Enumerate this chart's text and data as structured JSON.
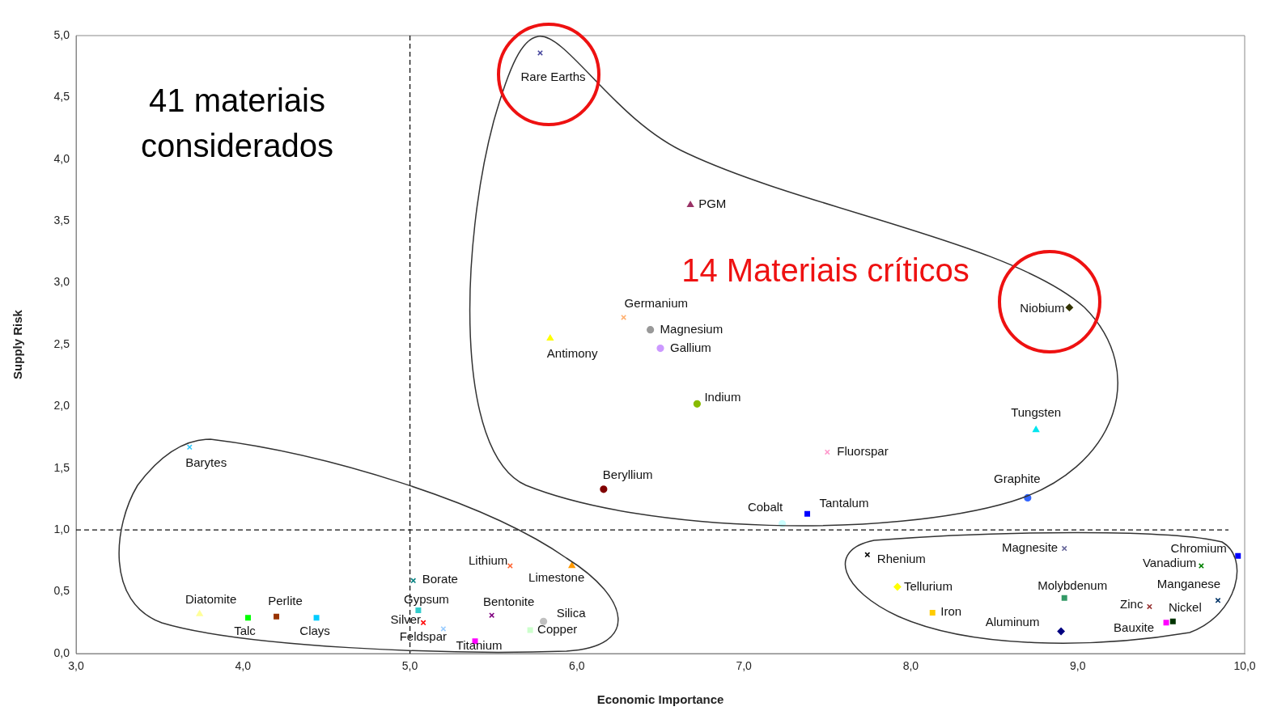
{
  "chart_data": {
    "type": "scatter",
    "xlabel": "Economic Importance",
    "ylabel": "Supply Risk",
    "xlim": [
      3,
      10
    ],
    "ylim": [
      0,
      5
    ],
    "xticks": [
      {
        "value": 3,
        "label": "3,0"
      },
      {
        "value": 4,
        "label": "4,0"
      },
      {
        "value": 5,
        "label": "5,0"
      },
      {
        "value": 6,
        "label": "6,0"
      },
      {
        "value": 7,
        "label": "7,0"
      },
      {
        "value": 8,
        "label": "8,0"
      },
      {
        "value": 9,
        "label": "9,0"
      },
      {
        "value": 10,
        "label": "10,0"
      }
    ],
    "yticks": [
      {
        "value": 0,
        "label": "0,0"
      },
      {
        "value": 0.5,
        "label": "0,5"
      },
      {
        "value": 1,
        "label": "1,0"
      },
      {
        "value": 1.5,
        "label": "1,5"
      },
      {
        "value": 2,
        "label": "2,0"
      },
      {
        "value": 2.5,
        "label": "2,5"
      },
      {
        "value": 3,
        "label": "3,0"
      },
      {
        "value": 3.5,
        "label": "3,5"
      },
      {
        "value": 4,
        "label": "4,0"
      },
      {
        "value": 4.5,
        "label": "4,5"
      },
      {
        "value": 5,
        "label": "5,0"
      }
    ],
    "grid": false,
    "legend": false,
    "annotations": [
      "41 materiais considerados",
      "14 Materiais críticos"
    ],
    "ref_lines": [
      {
        "axis": "x",
        "value": 5,
        "line_style": "dashed"
      },
      {
        "axis": "y",
        "value": 1,
        "line_style": "dashed"
      }
    ],
    "series": [
      {
        "name": "Rare Earths",
        "color": "#4b4ba0",
        "marker": "cross",
        "x": [
          5.78
        ],
        "values": [
          4.86
        ]
      },
      {
        "name": "PGM",
        "color": "#993366",
        "marker": "triangle",
        "x": [
          6.68
        ],
        "values": [
          3.63
        ]
      },
      {
        "name": "Germanium",
        "color": "#ffb070",
        "marker": "cross",
        "x": [
          6.28
        ],
        "values": [
          2.72
        ]
      },
      {
        "name": "Magnesium",
        "color": "#999999",
        "marker": "circle",
        "x": [
          6.44
        ],
        "values": [
          2.62
        ]
      },
      {
        "name": "Gallium",
        "color": "#cc99ff",
        "marker": "circle",
        "x": [
          6.5
        ],
        "values": [
          2.47
        ]
      },
      {
        "name": "Antimony",
        "color": "#ffff00",
        "marker": "triangle",
        "x": [
          5.84
        ],
        "values": [
          2.55
        ]
      },
      {
        "name": "Indium",
        "color": "#88bb00",
        "marker": "circle",
        "x": [
          6.72
        ],
        "values": [
          2.02
        ]
      },
      {
        "name": "Niobium",
        "color": "#333300",
        "marker": "diamond",
        "x": [
          8.95
        ],
        "values": [
          2.8
        ]
      },
      {
        "name": "Tungsten",
        "color": "#00e5ee",
        "marker": "triangle",
        "x": [
          8.75
        ],
        "values": [
          1.81
        ]
      },
      {
        "name": "Fluorspar",
        "color": "#ff99cc",
        "marker": "cross",
        "x": [
          7.5
        ],
        "values": [
          1.63
        ]
      },
      {
        "name": "Beryllium",
        "color": "#800000",
        "marker": "circle",
        "x": [
          6.16
        ],
        "values": [
          1.33
        ]
      },
      {
        "name": "Graphite",
        "color": "#3366ff",
        "marker": "circle",
        "x": [
          8.7
        ],
        "values": [
          1.26
        ]
      },
      {
        "name": "Cobalt",
        "color": "#ccffff",
        "marker": "circle",
        "x": [
          7.23
        ],
        "values": [
          1.05
        ]
      },
      {
        "name": "Tantalum",
        "color": "#0000ff",
        "marker": "square",
        "x": [
          7.38
        ],
        "values": [
          1.13
        ]
      },
      {
        "name": "Barytes",
        "color": "#33ccff",
        "marker": "cross",
        "x": [
          3.68
        ],
        "values": [
          1.67
        ]
      },
      {
        "name": "Diatomite",
        "color": "#ffff99",
        "marker": "triangle",
        "x": [
          3.74
        ],
        "values": [
          0.32
        ]
      },
      {
        "name": "Talc",
        "color": "#00ff00",
        "marker": "square",
        "x": [
          4.03
        ],
        "values": [
          0.29
        ]
      },
      {
        "name": "Perlite",
        "color": "#993300",
        "marker": "square",
        "x": [
          4.2
        ],
        "values": [
          0.3
        ]
      },
      {
        "name": "Clays",
        "color": "#00ccff",
        "marker": "square",
        "x": [
          4.44
        ],
        "values": [
          0.29
        ]
      },
      {
        "name": "Borate",
        "color": "#008080",
        "marker": "cross",
        "x": [
          5.02
        ],
        "values": [
          0.59
        ]
      },
      {
        "name": "Gypsum",
        "color": "#33cccc",
        "marker": "square",
        "x": [
          5.05
        ],
        "values": [
          0.35
        ]
      },
      {
        "name": "Silver",
        "color": "#ff0000",
        "marker": "cross",
        "x": [
          5.08
        ],
        "values": [
          0.25
        ]
      },
      {
        "name": "Feldspar",
        "color": "#99ccff",
        "marker": "cross",
        "x": [
          5.2
        ],
        "values": [
          0.2
        ]
      },
      {
        "name": "Titanium",
        "color": "#ff00ff",
        "marker": "square",
        "x": [
          5.39
        ],
        "values": [
          0.1
        ]
      },
      {
        "name": "Bentonite",
        "color": "#800080",
        "marker": "cross",
        "x": [
          5.49
        ],
        "values": [
          0.31
        ]
      },
      {
        "name": "Lithium",
        "color": "#ff6633",
        "marker": "cross",
        "x": [
          5.6
        ],
        "values": [
          0.71
        ]
      },
      {
        "name": "Limestone",
        "color": "#ff9900",
        "marker": "triangle",
        "x": [
          5.97
        ],
        "values": [
          0.71
        ]
      },
      {
        "name": "Copper",
        "color": "#ccffcc",
        "marker": "square",
        "x": [
          5.72
        ],
        "values": [
          0.19
        ]
      },
      {
        "name": "Silica",
        "color": "#c0c0c0",
        "marker": "circle",
        "x": [
          5.8
        ],
        "values": [
          0.26
        ]
      },
      {
        "name": "Rhenium",
        "color": "#000000",
        "marker": "cross",
        "x": [
          7.74
        ],
        "values": [
          0.8
        ]
      },
      {
        "name": "Magnesite",
        "color": "#666699",
        "marker": "cross",
        "x": [
          8.92
        ],
        "values": [
          0.85
        ]
      },
      {
        "name": "Chromium",
        "color": "#0000ff",
        "marker": "square",
        "x": [
          9.96
        ],
        "values": [
          0.79
        ]
      },
      {
        "name": "Vanadium",
        "color": "#008000",
        "marker": "cross",
        "x": [
          9.74
        ],
        "values": [
          0.71
        ]
      },
      {
        "name": "Tellurium",
        "color": "#ffff00",
        "marker": "diamond",
        "x": [
          7.92
        ],
        "values": [
          0.54
        ]
      },
      {
        "name": "Molybdenum",
        "color": "#339966",
        "marker": "square",
        "x": [
          8.92
        ],
        "values": [
          0.45
        ]
      },
      {
        "name": "Manganese",
        "color": "#003366",
        "marker": "cross",
        "x": [
          9.84
        ],
        "values": [
          0.43
        ]
      },
      {
        "name": "Zinc",
        "color": "#993333",
        "marker": "cross",
        "x": [
          9.43
        ],
        "values": [
          0.38
        ]
      },
      {
        "name": "Iron",
        "color": "#ffcc00",
        "marker": "square",
        "x": [
          8.13
        ],
        "values": [
          0.33
        ]
      },
      {
        "name": "Nickel",
        "color": "#003300",
        "marker": "square",
        "x": [
          9.57
        ],
        "values": [
          0.26
        ]
      },
      {
        "name": "Bauxite",
        "color": "#ff00ff",
        "marker": "square",
        "x": [
          9.53
        ],
        "values": [
          0.25
        ]
      },
      {
        "name": "Aluminum",
        "color": "#000080",
        "marker": "diamond",
        "x": [
          8.9
        ],
        "values": [
          0.18
        ]
      }
    ]
  }
}
